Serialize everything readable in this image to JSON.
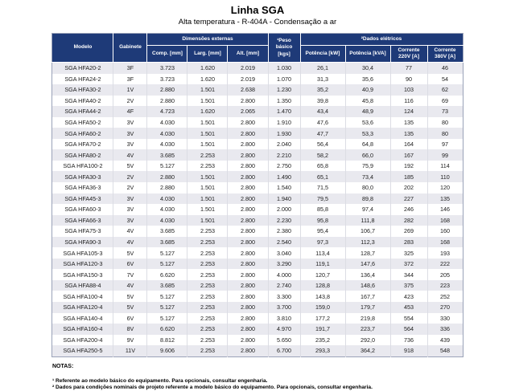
{
  "page": {
    "title": "Linha SGA",
    "subtitle": "Alta temperatura - R-404A - Condensação a ar"
  },
  "colors": {
    "header_bg": "#1E3A78",
    "stripe_bg": "#E9E9EF",
    "header_text": "#FFFFFF"
  },
  "table": {
    "group_headers": {
      "dimensoes": "Dimensões externas",
      "dados": "²Dados elétricos"
    },
    "headers": {
      "modelo": "Modelo",
      "gabinete": "Gabinete",
      "comp": "Comp. [mm]",
      "larg": "Larg. [mm]",
      "alt": "Alt. [mm]",
      "peso": "¹Peso básico [kgs]",
      "pot_kw": "Potência [kW]",
      "pot_kva": "Potência [kVA]",
      "corrente_220": "Corrente 220V [A]",
      "corrente_380": "Corrente 380V [A]"
    },
    "rows": [
      [
        "SGA HFA20-2",
        "3F",
        "3.723",
        "1.620",
        "2.019",
        "1.030",
        "26,1",
        "30,4",
        "77",
        "46"
      ],
      [
        "SGA HFA24-2",
        "3F",
        "3.723",
        "1.620",
        "2.019",
        "1.070",
        "31,3",
        "35,6",
        "90",
        "54"
      ],
      [
        "SGA HFA30-2",
        "1V",
        "2.880",
        "1.501",
        "2.638",
        "1.230",
        "35,2",
        "40,9",
        "103",
        "62"
      ],
      [
        "SGA HFA40-2",
        "2V",
        "2.880",
        "1.501",
        "2.800",
        "1.350",
        "39,8",
        "45,8",
        "116",
        "69"
      ],
      [
        "SGA HFA44-2",
        "4F",
        "4.723",
        "1.620",
        "2.065",
        "1.470",
        "43,4",
        "48,9",
        "124",
        "73"
      ],
      [
        "SGA HFA50-2",
        "3V",
        "4.030",
        "1.501",
        "2.800",
        "1.910",
        "47,6",
        "53,6",
        "135",
        "80"
      ],
      [
        "SGA HFA60-2",
        "3V",
        "4.030",
        "1.501",
        "2.800",
        "1.930",
        "47,7",
        "53,3",
        "135",
        "80"
      ],
      [
        "SGA HFA70-2",
        "3V",
        "4.030",
        "1.501",
        "2.800",
        "2.040",
        "56,4",
        "64,8",
        "164",
        "97"
      ],
      [
        "SGA HFA80-2",
        "4V",
        "3.685",
        "2.253",
        "2.800",
        "2.210",
        "58,2",
        "66,0",
        "167",
        "99"
      ],
      [
        "SGA HFA100-2",
        "5V",
        "5.127",
        "2.253",
        "2.800",
        "2.750",
        "65,8",
        "75,9",
        "192",
        "114"
      ],
      [
        "SGA HFA30-3",
        "2V",
        "2.880",
        "1.501",
        "2.800",
        "1.490",
        "65,1",
        "73,4",
        "185",
        "110"
      ],
      [
        "SGA HFA36-3",
        "2V",
        "2.880",
        "1.501",
        "2.800",
        "1.540",
        "71,5",
        "80,0",
        "202",
        "120"
      ],
      [
        "SGA HFA45-3",
        "3V",
        "4.030",
        "1.501",
        "2.800",
        "1.940",
        "79,5",
        "89,8",
        "227",
        "135"
      ],
      [
        "SGA HFA60-3",
        "3V",
        "4.030",
        "1.501",
        "2.800",
        "2.000",
        "85,8",
        "97,4",
        "246",
        "146"
      ],
      [
        "SGA HFA66-3",
        "3V",
        "4.030",
        "1.501",
        "2.800",
        "2.230",
        "95,8",
        "111,8",
        "282",
        "168"
      ],
      [
        "SGA HFA75-3",
        "4V",
        "3.685",
        "2.253",
        "2.800",
        "2.380",
        "95,4",
        "106,7",
        "269",
        "160"
      ],
      [
        "SGA HFA90-3",
        "4V",
        "3.685",
        "2.253",
        "2.800",
        "2.540",
        "97,3",
        "112,3",
        "283",
        "168"
      ],
      [
        "SGA HFA105-3",
        "5V",
        "5.127",
        "2.253",
        "2.800",
        "3.040",
        "113,4",
        "128,7",
        "325",
        "193"
      ],
      [
        "SGA HFA120-3",
        "6V",
        "5.127",
        "2.253",
        "2.800",
        "3.290",
        "119,1",
        "147,6",
        "372",
        "222"
      ],
      [
        "SGA HFA150-3",
        "7V",
        "6.620",
        "2.253",
        "2.800",
        "4.000",
        "120,7",
        "136,4",
        "344",
        "205"
      ],
      [
        "SGA HFA88-4",
        "4V",
        "3.685",
        "2.253",
        "2.800",
        "2.740",
        "128,8",
        "148,6",
        "375",
        "223"
      ],
      [
        "SGA HFA100-4",
        "5V",
        "5.127",
        "2.253",
        "2.800",
        "3.300",
        "143,8",
        "167,7",
        "423",
        "252"
      ],
      [
        "SGA HFA120-4",
        "5V",
        "5.127",
        "2.253",
        "2.800",
        "3.700",
        "159,0",
        "179,7",
        "453",
        "270"
      ],
      [
        "SGA HFA140-4",
        "6V",
        "5.127",
        "2.253",
        "2.800",
        "3.810",
        "177,2",
        "219,8",
        "554",
        "330"
      ],
      [
        "SGA HFA160-4",
        "8V",
        "6.620",
        "2.253",
        "2.800",
        "4.970",
        "191,7",
        "223,7",
        "564",
        "336"
      ],
      [
        "SGA HFA200-4",
        "9V",
        "8.812",
        "2.253",
        "2.800",
        "5.650",
        "235,2",
        "292,0",
        "736",
        "439"
      ],
      [
        "SGA HFA250-5",
        "11V",
        "9.606",
        "2.253",
        "2.800",
        "6.700",
        "293,3",
        "364,2",
        "918",
        "548"
      ]
    ]
  },
  "notes": {
    "label": "NOTAS:",
    "items": [
      "¹ Referente ao modelo básico do equipamento. Para opcionais, consultar engenharia.",
      "² Dados para condições nominais de projeto referente a modelo básico do equipamento. Para opcionais, consultar engenharia."
    ]
  }
}
